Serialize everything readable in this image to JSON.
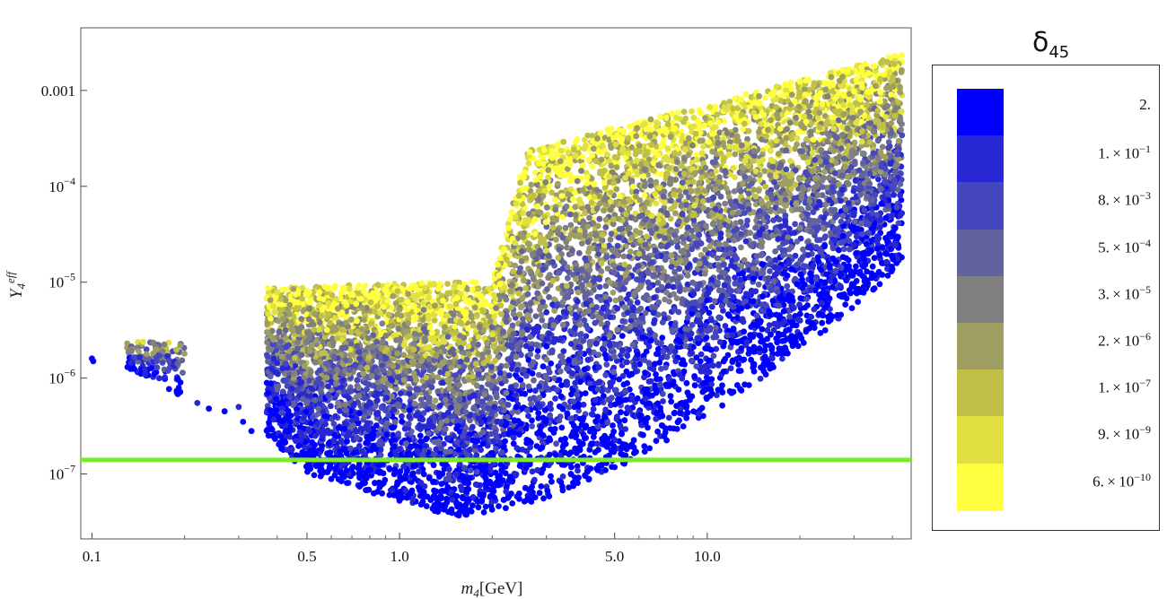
{
  "chart_data": {
    "type": "scatter",
    "title": "",
    "xlabel": "m4[GeV]",
    "ylabel": "Y4eff",
    "x_scale": "log",
    "y_scale": "log",
    "xlim": [
      0.092,
      46
    ],
    "ylim": [
      2.1e-08,
      0.0045
    ],
    "x_ticks": [
      {
        "value": 0.1,
        "label": "0.1"
      },
      {
        "value": 0.5,
        "label": "0.5"
      },
      {
        "value": 1.0,
        "label": "1.0"
      },
      {
        "value": 5.0,
        "label": "5.0"
      },
      {
        "value": 10.0,
        "label": "10.0"
      }
    ],
    "y_ticks": [
      {
        "value": 1e-07,
        "base": "10",
        "exp": "−7"
      },
      {
        "value": 1e-06,
        "base": "10",
        "exp": "−6"
      },
      {
        "value": 1e-05,
        "base": "10",
        "exp": "−5"
      },
      {
        "value": 0.0001,
        "base": "10",
        "exp": "−4"
      },
      {
        "value": 0.001,
        "base": "0.001",
        "exp": ""
      }
    ],
    "reference_line": {
      "y": 1.4e-07,
      "color": "#7eea2b"
    },
    "color_variable": "δ45",
    "colorbar": [
      {
        "value": "2.",
        "color": "#0000ff"
      },
      {
        "value": "1.×10−1",
        "mant": "1.",
        "exp": "−1",
        "color": "#2727d4"
      },
      {
        "value": "8.×10−3",
        "mant": "8.",
        "exp": "−3",
        "color": "#4646bd"
      },
      {
        "value": "5.×10−4",
        "mant": "5.",
        "exp": "−4",
        "color": "#62629e"
      },
      {
        "value": "3.×10−5",
        "mant": "3.",
        "exp": "−5",
        "color": "#808080"
      },
      {
        "value": "2.×10−6",
        "mant": "2.",
        "exp": "−6",
        "color": "#9e9e62"
      },
      {
        "value": "1.×10−7",
        "mant": "1.",
        "exp": "−7",
        "color": "#c0c046"
      },
      {
        "value": "9.×10−9",
        "mant": "9.",
        "exp": "−9",
        "color": "#e0e040"
      },
      {
        "value": "6.×10−10",
        "mant": "6.",
        "exp": "−10",
        "color": "#ffff40"
      }
    ],
    "series": [
      {
        "name": "",
        "description_regions": [
          {
            "x_range": [
              0.13,
              0.2
            ],
            "y_bottom": 6e-07,
            "y_top": 2.5e-06
          },
          {
            "x_range": [
              0.36,
              2.0
            ],
            "y_bottom": 3.5e-08,
            "y_top": 1e-05
          },
          {
            "x_range": [
              2.0,
              2.7
            ],
            "y_bottom": 4e-08,
            "y_top": 0.00025
          },
          {
            "x_range": [
              2.7,
              43
            ],
            "y_bottom": 5e-08,
            "y_top": 0.0025
          }
        ],
        "x": [
          0.1,
          0.101
        ],
        "y": [
          1.6e-06,
          1.5e-06
        ]
      }
    ]
  }
}
